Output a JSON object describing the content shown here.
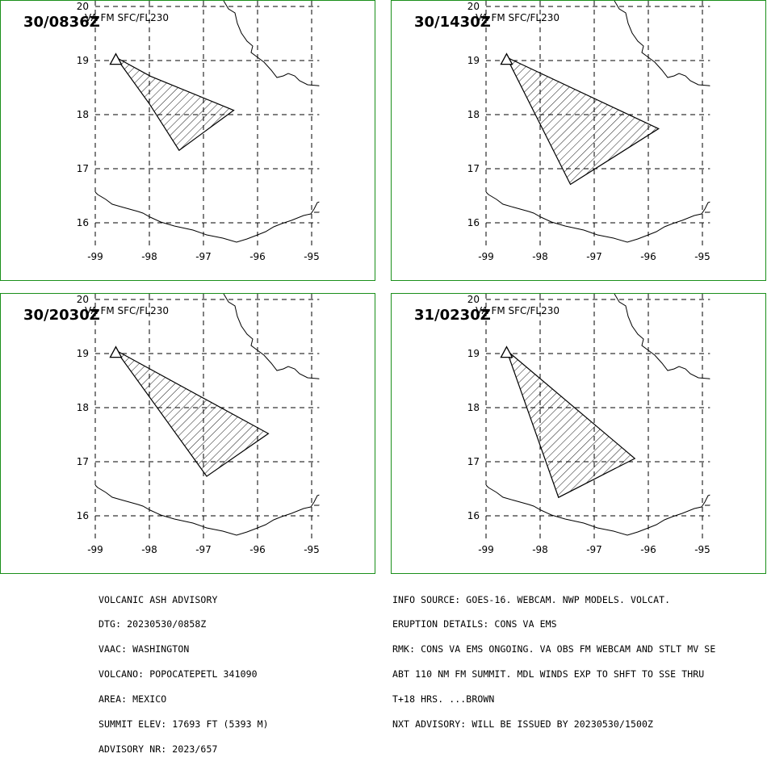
{
  "map_extent": {
    "lon_min": -99.0,
    "lon_max": -94.86,
    "lat_min": 15.55,
    "lat_max": 20.08
  },
  "lat_ticks": [
    "20",
    "19",
    "18",
    "17",
    "16"
  ],
  "lon_ticks": [
    "-99",
    "-98",
    "-97",
    "-96",
    "-95"
  ],
  "volcano": {
    "name": "POPOCATEPETL",
    "lon": -98.62,
    "lat": 19.02
  },
  "panels": [
    {
      "time": "30/0836Z",
      "level": "VA FM SFC/FL230",
      "polygon": [
        [
          -98.62,
          19.06
        ],
        [
          -97.98,
          18.71
        ],
        [
          -96.44,
          18.08
        ],
        [
          -97.45,
          17.34
        ],
        [
          -98.0,
          18.2
        ],
        [
          -98.62,
          19.06
        ]
      ]
    },
    {
      "time": "30/1430Z",
      "level": "VA FM SFC/FL230",
      "polygon": [
        [
          -98.62,
          19.06
        ],
        [
          -95.81,
          17.74
        ],
        [
          -97.44,
          16.71
        ],
        [
          -98.62,
          19.06
        ]
      ]
    },
    {
      "time": "30/2030Z",
      "level": "VA FM SFC/FL230",
      "polygon": [
        [
          -98.62,
          19.06
        ],
        [
          -95.8,
          17.52
        ],
        [
          -96.94,
          16.73
        ],
        [
          -98.62,
          19.06
        ]
      ]
    },
    {
      "time": "31/0230Z",
      "level": "VA FM SFC/FL230",
      "polygon": [
        [
          -98.62,
          19.06
        ],
        [
          -96.25,
          17.06
        ],
        [
          -97.66,
          16.34
        ],
        [
          -98.62,
          19.06
        ]
      ]
    }
  ],
  "advisory_left": [
    "VOLCANIC ASH ADVISORY",
    "DTG: 20230530/0858Z",
    "VAAC: WASHINGTON",
    "VOLCANO: POPOCATEPETL 341090",
    "AREA: MEXICO",
    "SUMMIT ELEV: 17693 FT (5393 M)",
    "ADVISORY NR: 2023/657"
  ],
  "advisory_right": [
    "INFO SOURCE: GOES-16. WEBCAM. NWP MODELS. VOLCAT.",
    "ERUPTION DETAILS: CONS VA EMS",
    "RMK: CONS VA EMS ONGOING. VA OBS FM WEBCAM AND STLT MV SE",
    "ABT 110 NM FM SUMMIT. MDL WINDS EXP TO SHFT TO SSE THRU",
    "T+18 HRS. ...BROWN",
    "NXT ADVISORY: WILL BE ISSUED BY 20230530/1500Z"
  ]
}
